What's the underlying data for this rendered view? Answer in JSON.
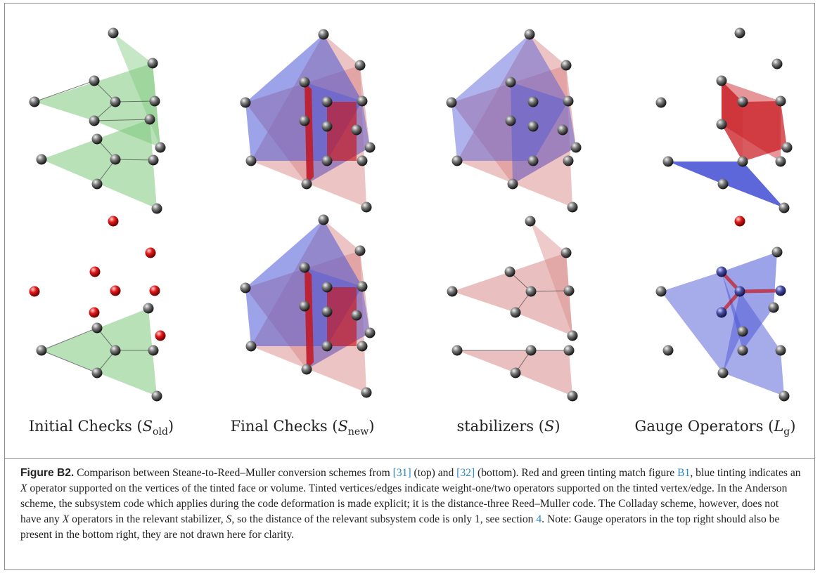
{
  "column_labels": [
    {
      "name": "Initial Checks",
      "symbol": "S",
      "subscript": "old"
    },
    {
      "name": "Final Checks",
      "symbol": "S",
      "subscript": "new"
    },
    {
      "name": "stabilizers",
      "symbol": "S",
      "subscript": ""
    },
    {
      "name": "Gauge Operators",
      "symbol": "L",
      "subscript": "g"
    }
  ],
  "caption": {
    "label": "Figure B2.",
    "p1": " Comparison between Steane-to-Reed–Muller conversion schemes from ",
    "ref1": "[31]",
    "p2": " (top) and ",
    "ref2": "[32]",
    "p3": " (bottom). Red and green tinting match figure ",
    "ref3": "B1",
    "p4": ", blue tinting indicates an ",
    "x1": "X",
    "p5": " operator supported on the vertices of the tinted face or volume. Tinted vertices/edges indicate weight-one/two operators supported on the tinted vertex/edge. In the Anderson scheme, the subsystem code which applies during the code deformation is made explicit; it is the distance-three Reed–Muller code. The Colladay scheme, however, does not have any ",
    "x2": "X",
    "p6": " operators in the relevant stabilizer, ",
    "s": "S",
    "p7": ", so the distance of the relevant subsystem code is only 1, see section ",
    "ref4": "4",
    "p8": ". Note: Gauge operators in the top right should also be present in the bottom right, they are not drawn here for clarity."
  },
  "colors": {
    "green_tint": "#7ec97e",
    "red_tint": "#d98a8a",
    "blue_tint": "#4d57d6",
    "red_solid": "#c8161c",
    "vertex_gray": "#555555",
    "vertex_red": "#d01010",
    "link": "#2a88c8"
  }
}
